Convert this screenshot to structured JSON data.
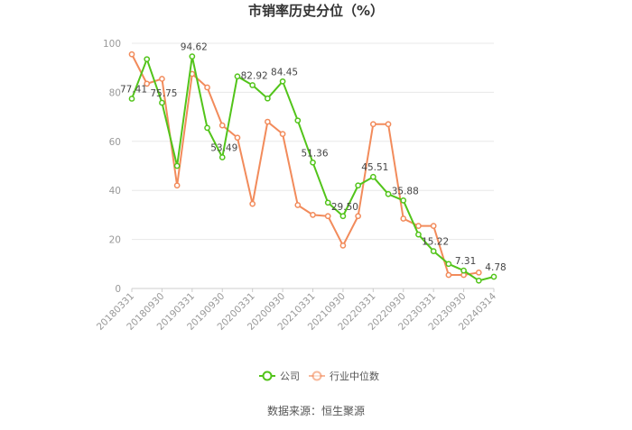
{
  "chart_data": {
    "type": "line",
    "title": "市销率历史分位（%）",
    "source": "数据来源：恒生聚源",
    "ylim": [
      0,
      100
    ],
    "yticks": [
      0,
      20,
      40,
      60,
      80,
      100
    ],
    "grid": true,
    "legend_position": "bottom",
    "x": [
      "20180331",
      "20180630",
      "20180930",
      "20181231",
      "20190331",
      "20190630",
      "20190930",
      "20191231",
      "20200331",
      "20200630",
      "20200930",
      "20201231",
      "20210331",
      "20210630",
      "20210930",
      "20211231",
      "20220331",
      "20220630",
      "20220930",
      "20221231",
      "20230331",
      "20230630",
      "20230930",
      "20231231",
      "20240314"
    ],
    "xtick_labels": [
      "20180331",
      "20180930",
      "20190331",
      "20190930",
      "20200331",
      "20200930",
      "20210331",
      "20210930",
      "20220331",
      "20220930",
      "20230331",
      "20230930",
      "20240314"
    ],
    "series": [
      {
        "name": "公司",
        "color": "#52c41a",
        "values": [
          77.41,
          93.5,
          75.75,
          50.0,
          94.62,
          65.5,
          53.49,
          86.5,
          82.92,
          77.5,
          84.45,
          68.5,
          51.36,
          35.0,
          29.5,
          42.0,
          45.51,
          38.5,
          35.88,
          22.0,
          15.22,
          10.0,
          7.31,
          3.2,
          4.78
        ]
      },
      {
        "name": "行业中位数",
        "color": "#f28b5b",
        "values": [
          95.5,
          83.5,
          85.5,
          42.0,
          87.5,
          82.0,
          66.5,
          61.5,
          34.5,
          68.0,
          63.0,
          34.0,
          30.0,
          29.5,
          17.5,
          29.5,
          67.0,
          67.0,
          28.5,
          25.5,
          25.5,
          5.5,
          5.5,
          6.5,
          null
        ]
      }
    ],
    "data_labels": [
      {
        "series": 0,
        "index": 0,
        "text": "77.41"
      },
      {
        "series": 0,
        "index": 2,
        "text": "75.75"
      },
      {
        "series": 0,
        "index": 4,
        "text": "94.62"
      },
      {
        "series": 0,
        "index": 6,
        "text": "53.49"
      },
      {
        "series": 0,
        "index": 8,
        "text": "82.92"
      },
      {
        "series": 0,
        "index": 10,
        "text": "84.45"
      },
      {
        "series": 0,
        "index": 12,
        "text": "51.36"
      },
      {
        "series": 0,
        "index": 14,
        "text": "29.50"
      },
      {
        "series": 0,
        "index": 16,
        "text": "45.51"
      },
      {
        "series": 0,
        "index": 18,
        "text": "35.88"
      },
      {
        "series": 0,
        "index": 20,
        "text": "15.22"
      },
      {
        "series": 0,
        "index": 22,
        "text": "7.31"
      },
      {
        "series": 0,
        "index": 24,
        "text": "4.78"
      }
    ]
  }
}
